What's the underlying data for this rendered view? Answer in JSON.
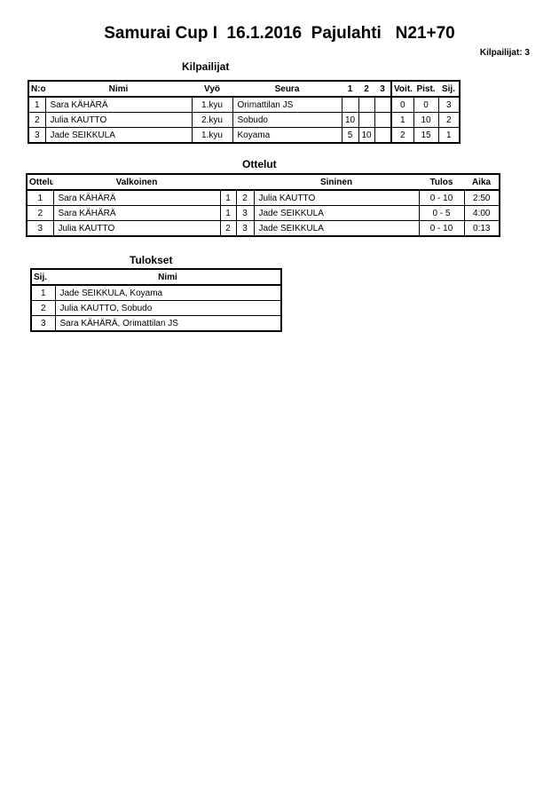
{
  "title": "Samurai Cup I  16.1.2016  Pajulahti   N21+70",
  "competitor_count": "Kilpailijat: 3",
  "competitors": {
    "heading": "Kilpailijat",
    "columns": [
      "N:o",
      "Nimi",
      "Vyö",
      "Seura",
      "1",
      "2",
      "3",
      "Voit.",
      "Pist.",
      "Sij."
    ],
    "rows": [
      [
        "1",
        "Sara KÄHÄRÄ",
        "1.kyu",
        "Orimattilan JS",
        "",
        "",
        "",
        "0",
        "0",
        "3"
      ],
      [
        "2",
        "Julia KAUTTO",
        "2.kyu",
        "Sobudo",
        "10",
        "",
        "",
        "1",
        "10",
        "2"
      ],
      [
        "3",
        "Jade SEIKKULA",
        "1.kyu",
        "Koyama",
        "5",
        "10",
        "",
        "2",
        "15",
        "1"
      ]
    ]
  },
  "matches": {
    "heading": "Ottelut",
    "columns": [
      "Ottelu",
      "Valkoinen",
      "",
      "",
      "Sininen",
      "Tulos",
      "Aika"
    ],
    "rows": [
      [
        "1",
        "Sara KÄHÄRÄ",
        "1",
        "2",
        "Julia KAUTTO",
        "0 - 10",
        "2:50"
      ],
      [
        "2",
        "Sara KÄHÄRÄ",
        "1",
        "3",
        "Jade SEIKKULA",
        "0 - 5",
        "4:00"
      ],
      [
        "3",
        "Julia KAUTTO",
        "2",
        "3",
        "Jade SEIKKULA",
        "0 - 10",
        "0:13"
      ]
    ]
  },
  "results": {
    "heading": "Tulokset",
    "columns": [
      "Sij.",
      "Nimi"
    ],
    "rows": [
      [
        "1",
        "Jade SEIKKULA, Koyama"
      ],
      [
        "2",
        "Julia KAUTTO, Sobudo"
      ],
      [
        "3",
        "Sara KÄHÄRÄ, Orimattilan JS"
      ]
    ]
  }
}
